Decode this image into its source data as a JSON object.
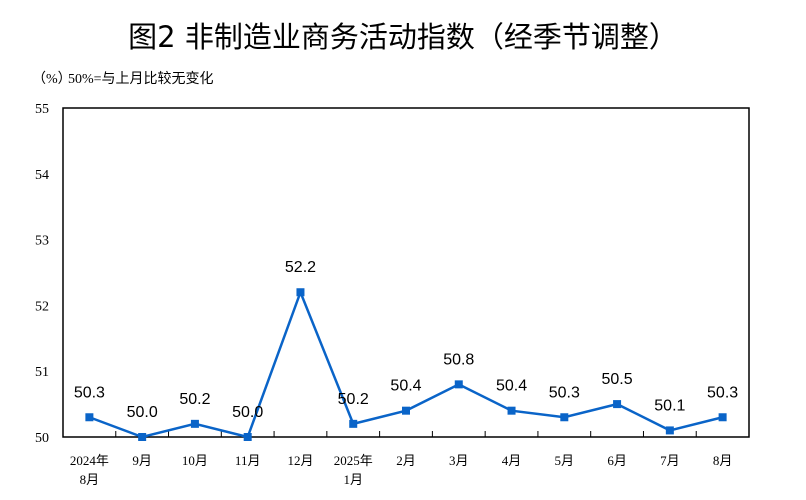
{
  "chart_data": {
    "type": "line",
    "title": "图2  非制造业商务活动指数（经季节调整）",
    "unit_label": "（%）",
    "annotation": "50%=与上月比较无变化",
    "categories": [
      [
        "2024年",
        "8月"
      ],
      [
        "9月"
      ],
      [
        "10月"
      ],
      [
        "11月"
      ],
      [
        "12月"
      ],
      [
        "2025年",
        "1月"
      ],
      [
        "2月"
      ],
      [
        "3月"
      ],
      [
        "4月"
      ],
      [
        "5月"
      ],
      [
        "6月"
      ],
      [
        "7月"
      ],
      [
        "8月"
      ]
    ],
    "values": [
      50.3,
      50.0,
      50.2,
      50.0,
      52.2,
      50.2,
      50.4,
      50.8,
      50.4,
      50.3,
      50.5,
      50.1,
      50.3
    ],
    "data_labels": [
      "50.3",
      "50.0",
      "50.2",
      "50.0",
      "52.2",
      "50.2",
      "50.4",
      "50.8",
      "50.4",
      "50.3",
      "50.5",
      "50.1",
      "50.3"
    ],
    "ylim": [
      50,
      55
    ],
    "yticks": [
      "50",
      "51",
      "52",
      "53",
      "54",
      "55"
    ],
    "grid": false,
    "line_color": "#0a64c8"
  }
}
